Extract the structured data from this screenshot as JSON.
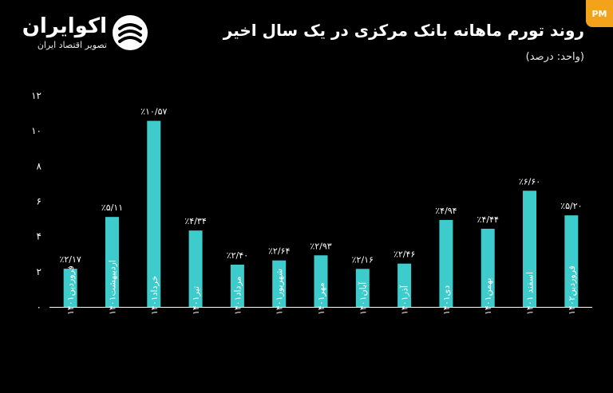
{
  "brand": {
    "name": "اکوایران",
    "tagline": "تصویر اقتصاد ایران"
  },
  "header": {
    "title": "روند تورم ماهانه بانک مرکزی در یک سال اخیر",
    "subtitle": "(واحد: درصد)"
  },
  "badge": {
    "text": "PM"
  },
  "colors": {
    "bar": "#3ecbcb",
    "background": "#000000",
    "text": "#ffffff"
  },
  "icons": {
    "logo": "ecoiran-logo-icon"
  },
  "chart_data": {
    "type": "bar",
    "title": "روند تورم ماهانه بانک مرکزی در یک سال اخیر",
    "ylabel": "",
    "xlabel": "",
    "ylim": [
      0,
      12
    ],
    "yticks": [
      0,
      2,
      4,
      6,
      8,
      10,
      12
    ],
    "ytick_labels": [
      "۰",
      "۲",
      "۴",
      "۶",
      "۸",
      "۱۰",
      "۱۲"
    ],
    "grid": false,
    "categories": [
      "فروردین۱۴۰۱",
      "اردیبهشت۱۴۰۱",
      "خرداد۱۴۰۱",
      "تیر۱۴۰۱",
      "مرداد۱۴۰۱",
      "شهریور۱۴۰۱",
      "مهر۱۴۰۱",
      "آبان۱۴۰۱",
      "آذر۱۴۰۱",
      "دی۱۴۰۱",
      "بهمن۱۴۰۱",
      "اسفند ۱۴۰۱",
      "فروردین۱۴۰۲"
    ],
    "values": [
      2.17,
      5.11,
      10.57,
      4.34,
      2.4,
      2.64,
      2.93,
      2.16,
      2.46,
      4.94,
      4.44,
      6.6,
      5.2
    ],
    "value_labels": [
      "٪۲/۱۷",
      "٪۵/۱۱",
      "٪۱۰/۵۷",
      "٪۴/۳۴",
      "٪۲/۴۰",
      "٪۲/۶۴",
      "٪۲/۹۳",
      "٪۲/۱۶",
      "٪۲/۴۶",
      "٪۴/۹۴",
      "٪۴/۴۴",
      "٪۶/۶۰",
      "٪۵/۲۰"
    ]
  }
}
